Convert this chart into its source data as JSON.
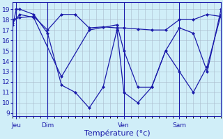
{
  "background_color": "#d0eef8",
  "grid_color": "#aabbcc",
  "line_color": "#1a1aaa",
  "xlabel": "Température (°c)",
  "xlabel_fontsize": 8,
  "yticks": [
    9,
    10,
    11,
    12,
    13,
    14,
    15,
    16,
    17,
    18,
    19
  ],
  "ylim": [
    8.7,
    19.7
  ],
  "xtick_labels": [
    "Jeu",
    "Dim",
    "Ven",
    "Sam"
  ],
  "xtick_positions": [
    0.5,
    5,
    16,
    24
  ],
  "vline_positions": [
    0.5,
    5,
    16,
    24
  ],
  "series1_x": [
    0,
    0.5,
    1,
    3,
    5,
    7,
    9,
    11,
    13,
    15,
    16,
    18,
    20,
    22,
    24,
    26,
    28,
    30
  ],
  "series1_y": [
    17.5,
    19.0,
    19.0,
    18.5,
    16.7,
    11.7,
    11.0,
    9.5,
    11.5,
    17.0,
    11.0,
    10.0,
    11.5,
    15.0,
    17.2,
    16.7,
    13.0,
    19.0
  ],
  "series2_x": [
    0,
    1,
    3,
    5,
    7,
    9,
    11,
    13,
    15,
    16,
    18,
    20,
    22,
    24,
    26,
    28,
    30
  ],
  "series2_y": [
    18.0,
    18.2,
    18.3,
    17.0,
    18.5,
    18.5,
    17.2,
    17.3,
    17.2,
    17.2,
    17.1,
    17.0,
    17.0,
    18.0,
    18.0,
    18.5,
    18.3
  ],
  "series3_x": [
    0,
    1,
    3,
    7,
    11,
    15,
    16,
    18,
    20,
    22,
    24,
    26,
    28,
    30
  ],
  "series3_y": [
    17.7,
    18.5,
    18.2,
    12.5,
    17.0,
    17.5,
    15.0,
    11.5,
    11.5,
    15.0,
    13.0,
    11.0,
    13.5,
    18.5
  ],
  "xlim": [
    0,
    30
  ]
}
